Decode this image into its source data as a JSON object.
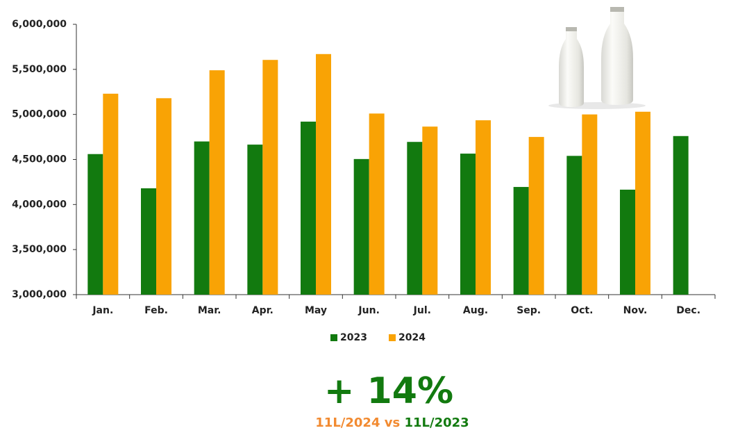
{
  "chart_data": {
    "type": "bar",
    "categories": [
      "Jan.",
      "Feb.",
      "Mar.",
      "Apr.",
      "May",
      "Jun.",
      "Jul.",
      "Aug.",
      "Sep.",
      "Oct.",
      "Nov.",
      "Dec."
    ],
    "series": [
      {
        "name": "2023",
        "color": "#127a0f",
        "values": [
          4560000,
          4180000,
          4700000,
          4665000,
          4920000,
          4505000,
          4695000,
          4565000,
          4195000,
          4540000,
          4165000,
          4760000
        ]
      },
      {
        "name": "2024",
        "color": "#f9a305",
        "values": [
          5230000,
          5180000,
          5490000,
          5605000,
          5670000,
          5010000,
          4865000,
          4935000,
          4750000,
          5000000,
          5030000,
          null
        ]
      }
    ],
    "ylim": [
      3000000,
      6000000
    ],
    "yticks": [
      {
        "value": 3000000,
        "label": "3,000,000"
      },
      {
        "value": 3500000,
        "label": "3,500,000"
      },
      {
        "value": 4000000,
        "label": "4,000,000"
      },
      {
        "value": 4500000,
        "label": "4,500,000"
      },
      {
        "value": 5000000,
        "label": "5,000,000"
      },
      {
        "value": 5500000,
        "label": "5,500,000"
      },
      {
        "value": 6000000,
        "label": "6,000,000"
      }
    ],
    "grid": false,
    "legend": "bottom",
    "annotations": {
      "headline": "+ 14%",
      "comparison": [
        "11L/2024",
        "vs",
        "11L/2023"
      ]
    }
  }
}
